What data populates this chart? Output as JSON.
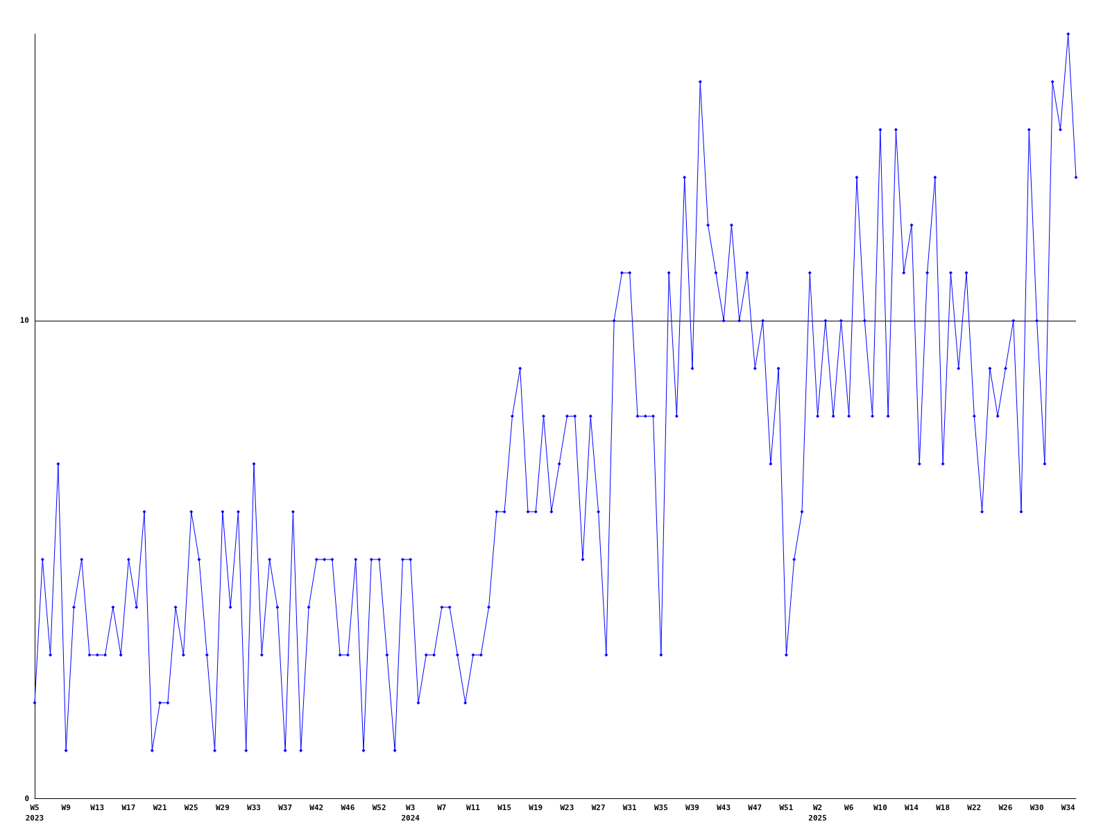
{
  "chart_data": {
    "type": "line",
    "categories": [
      "W5\n2023",
      null,
      null,
      null,
      "W9",
      null,
      null,
      null,
      "W13",
      null,
      null,
      null,
      "W17",
      null,
      null,
      null,
      "W21",
      null,
      null,
      null,
      "W25",
      null,
      null,
      null,
      "W29",
      null,
      null,
      null,
      "W33",
      null,
      null,
      null,
      "W37",
      null,
      null,
      null,
      "W42",
      null,
      null,
      null,
      "W46",
      null,
      null,
      null,
      "W52",
      null,
      null,
      null,
      "W3\n2024",
      null,
      null,
      null,
      "W7",
      null,
      null,
      null,
      "W11",
      null,
      null,
      null,
      "W15",
      null,
      null,
      null,
      "W19",
      null,
      null,
      null,
      "W23",
      null,
      null,
      null,
      "W27",
      null,
      null,
      null,
      "W31",
      null,
      null,
      null,
      "W35",
      null,
      null,
      null,
      "W39",
      null,
      null,
      null,
      "W43",
      null,
      null,
      null,
      "W47",
      null,
      null,
      null,
      "W51",
      null,
      null,
      null,
      "W2\n2025",
      null,
      null,
      null,
      "W6",
      null,
      null,
      null,
      "W10",
      null,
      null,
      null,
      "W14",
      null,
      null,
      null,
      "W18",
      null,
      null,
      null,
      "W22",
      null,
      null,
      null,
      "W26",
      null,
      null,
      null,
      "W30",
      null,
      null,
      null,
      "W34",
      null
    ],
    "series": [
      {
        "color": "#0000ff",
        "values": [
          2,
          5,
          3,
          7,
          1,
          4,
          5,
          3,
          3,
          3,
          4,
          3,
          5,
          4,
          6,
          1,
          2,
          2,
          4,
          3,
          6,
          5,
          3,
          1,
          6,
          4,
          6,
          1,
          7,
          3,
          5,
          4,
          1,
          6,
          1,
          4,
          5,
          5,
          5,
          3,
          3,
          5,
          1,
          5,
          5,
          3,
          1,
          5,
          5,
          2,
          3,
          3,
          4,
          4,
          3,
          2,
          3,
          3,
          4,
          6,
          6,
          8,
          9,
          6,
          6,
          8,
          6,
          7,
          8,
          8,
          5,
          8,
          6,
          3,
          10,
          11,
          11,
          8,
          8,
          8,
          3,
          11,
          8,
          13,
          9,
          15,
          12,
          11,
          10,
          12,
          10,
          11,
          9,
          10,
          7,
          9,
          3,
          5,
          6,
          11,
          8,
          10,
          8,
          10,
          8,
          13,
          10,
          8,
          14,
          8,
          14,
          11,
          12,
          7,
          11,
          13,
          7,
          11,
          9,
          11,
          8,
          6,
          9,
          8,
          9,
          10,
          6,
          14,
          10,
          7,
          15,
          14,
          16,
          13
        ]
      }
    ],
    "ylim": [
      0,
      16
    ],
    "yticks": [
      0,
      10
    ],
    "grid": "y",
    "marker": "diamond",
    "line_style": "solid"
  }
}
